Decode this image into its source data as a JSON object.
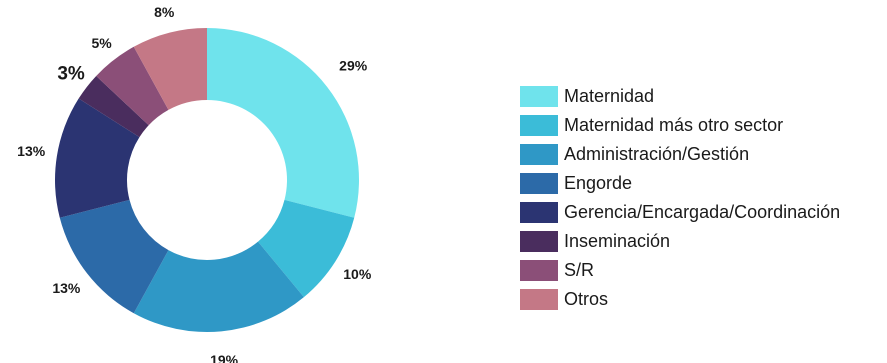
{
  "chart_data": {
    "type": "pie",
    "variant": "donut",
    "categories": [
      "Maternidad",
      "Maternidad más otro sector",
      "Administración/Gestión",
      "Engorde",
      "Gerencia/Encargada/Coordinación",
      "Inseminación",
      "S/R",
      "Otros"
    ],
    "values": [
      29,
      10,
      19,
      13,
      13,
      3,
      5,
      8
    ],
    "value_labels": [
      "29%",
      "10%",
      "19%",
      "13%",
      "13%",
      "3%",
      "5%",
      "8%"
    ],
    "colors": [
      "#6fe3ec",
      "#3bbcd8",
      "#2f98c6",
      "#2c6aa8",
      "#2b3472",
      "#4a2d5e",
      "#8b4f78",
      "#c47886"
    ],
    "legend_position": "right"
  }
}
